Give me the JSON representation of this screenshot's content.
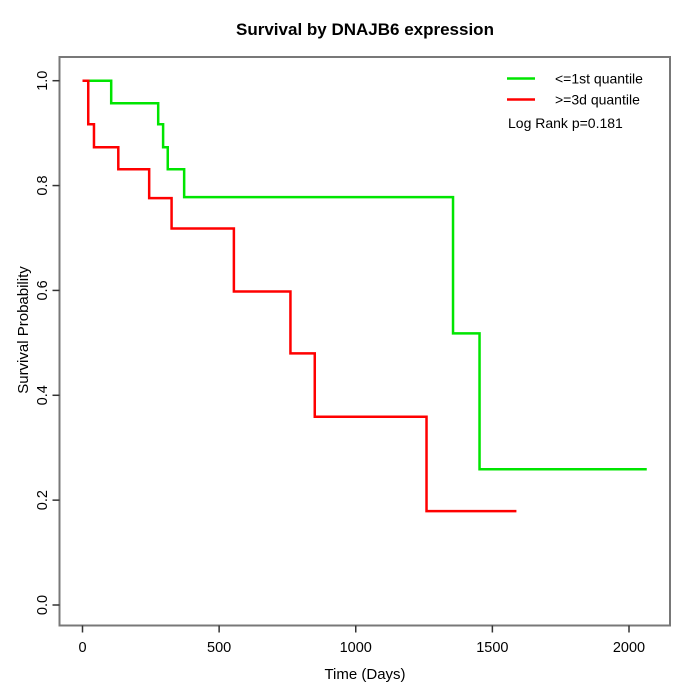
{
  "page": {
    "background": "#ffffff"
  },
  "chart_data": {
    "type": "line",
    "subtype": "kaplan-meier-step",
    "title": "Survival by DNAJB6 expression",
    "xlabel": "Time (Days)",
    "ylabel": "Survival Probability",
    "x_ticks": [
      0,
      500,
      1000,
      1500,
      2000
    ],
    "y_ticks": [
      0.0,
      0.2,
      0.4,
      0.6,
      0.8,
      1.0
    ],
    "xlim": [
      -85,
      2150
    ],
    "ylim": [
      0.0,
      1.0
    ],
    "grid": false,
    "legend_position": "top-right",
    "annotation": "Log Rank p=0.181",
    "series": [
      {
        "name": "<=1st quantile",
        "color": "#00e500",
        "steps": [
          [
            0,
            1.0
          ],
          [
            105,
            0.957
          ],
          [
            277,
            0.917
          ],
          [
            295,
            0.873
          ],
          [
            312,
            0.831
          ],
          [
            372,
            0.778
          ],
          [
            1356,
            0.518
          ],
          [
            1453,
            0.259
          ]
        ],
        "end_time": 2065
      },
      {
        "name": ">=3d quantile",
        "color": "#ff0000",
        "steps": [
          [
            0,
            1.0
          ],
          [
            21,
            0.917
          ],
          [
            42,
            0.873
          ],
          [
            131,
            0.831
          ],
          [
            244,
            0.776
          ],
          [
            326,
            0.718
          ],
          [
            554,
            0.598
          ],
          [
            761,
            0.48
          ],
          [
            850,
            0.359
          ],
          [
            1259,
            0.179
          ]
        ],
        "end_time": 1588
      }
    ],
    "colors": {
      "box": "#787878",
      "tick": "#333333",
      "text": "#000000"
    }
  }
}
